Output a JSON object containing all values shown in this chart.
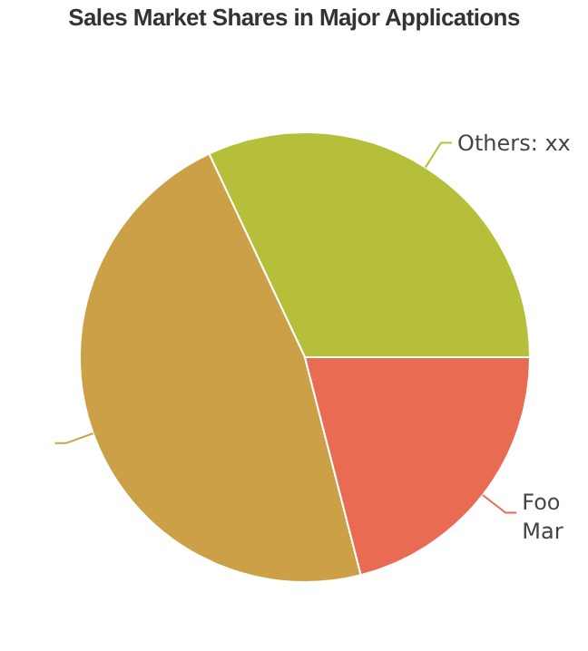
{
  "chart_data": {
    "type": "pie",
    "title": "Sales Market Shares in Major Applications",
    "categories": [
      "Others: xx",
      null,
      "Foo Mar"
    ],
    "values": [
      32,
      47,
      21
    ],
    "colors": [
      "#b5bf3a",
      "#cca046",
      "#e86b52"
    ],
    "legend": false
  }
}
